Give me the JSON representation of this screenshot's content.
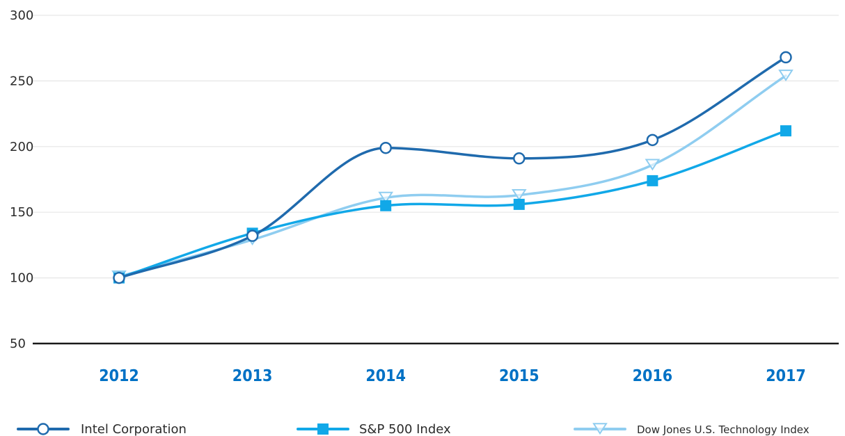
{
  "chart_data": {
    "type": "line",
    "x": [
      "2012",
      "2013",
      "2014",
      "2015",
      "2016",
      "2017"
    ],
    "ylim": [
      50,
      300
    ],
    "yticks": [
      "50",
      "100",
      "150",
      "200",
      "250",
      "300"
    ],
    "grid": true,
    "legend_position": "bottom",
    "series": [
      {
        "name": "Intel Corporation",
        "values": [
          100,
          132,
          199,
          191,
          205,
          268
        ],
        "color": "#1f6aad",
        "marker": "circle-open"
      },
      {
        "name": "S&P 500 Index",
        "values": [
          100,
          134,
          155,
          156,
          174,
          212
        ],
        "color": "#11a8e8",
        "marker": "square-filled"
      },
      {
        "name": "Dow Jones U.S. Technology Index",
        "values": [
          101,
          129,
          161,
          163,
          186,
          254
        ],
        "color": "#8fcdf0",
        "marker": "triangle-down-open"
      }
    ]
  }
}
